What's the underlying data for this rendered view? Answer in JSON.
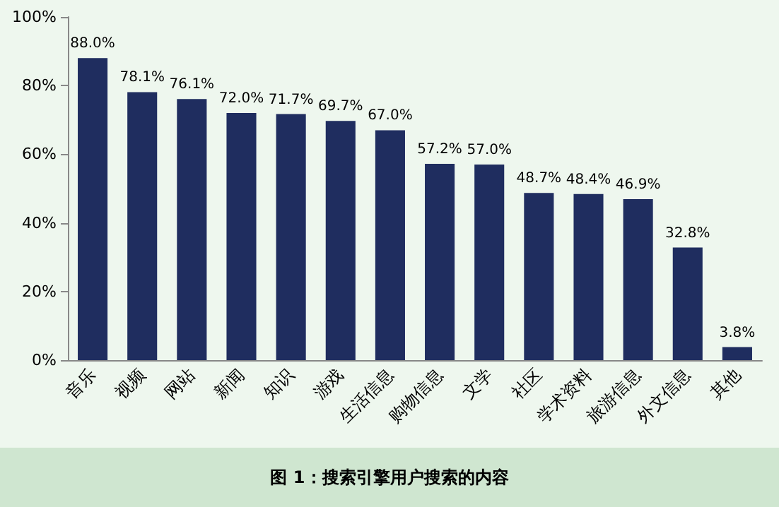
{
  "chart_data": {
    "type": "bar",
    "title": "图 1：搜索引擎用户搜索的内容",
    "categories": [
      "音乐",
      "视频",
      "网站",
      "新闻",
      "知识",
      "游戏",
      "生活信息",
      "购物信息",
      "文学",
      "社区",
      "学术资料",
      "旅游信息",
      "外文信息",
      "其他"
    ],
    "values": [
      88.0,
      78.1,
      76.1,
      72.0,
      71.7,
      69.7,
      67.0,
      57.2,
      57.0,
      48.7,
      48.4,
      46.9,
      32.8,
      3.8
    ],
    "value_labels": [
      "88.0%",
      "78.1%",
      "76.1%",
      "72.0%",
      "71.7%",
      "69.7%",
      "67.0%",
      "57.2%",
      "57.0%",
      "48.7%",
      "48.4%",
      "46.9%",
      "32.8%",
      "3.8%"
    ],
    "color": "#1f2d5f",
    "ylim": [
      0,
      100
    ],
    "yticks": [
      {
        "value": 0,
        "label": "0%"
      },
      {
        "value": 20,
        "label": "20%"
      },
      {
        "value": 40,
        "label": "40%"
      },
      {
        "value": 60,
        "label": "60%"
      },
      {
        "value": 80,
        "label": "80%"
      },
      {
        "value": 100,
        "label": "100%"
      }
    ],
    "grid": false
  }
}
